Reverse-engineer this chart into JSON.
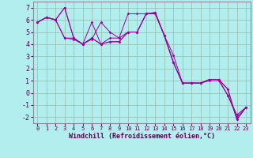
{
  "xlabel": "Windchill (Refroidissement éolien,°C)",
  "bg_color": "#b2eeee",
  "grid_color": "#aabbaa",
  "line_color": "#990099",
  "xlim": [
    -0.5,
    23.5
  ],
  "ylim": [
    -2.5,
    7.5
  ],
  "xticks": [
    0,
    1,
    2,
    3,
    4,
    5,
    6,
    7,
    8,
    9,
    10,
    11,
    12,
    13,
    14,
    15,
    16,
    17,
    18,
    19,
    20,
    21,
    22,
    23
  ],
  "yticks": [
    -2,
    -1,
    0,
    1,
    2,
    3,
    4,
    5,
    6,
    7
  ],
  "series": [
    [
      5.8,
      6.2,
      6.0,
      7.0,
      4.5,
      4.0,
      4.4,
      5.8,
      5.0,
      4.5,
      6.5,
      6.5,
      6.5,
      6.6,
      4.7,
      2.5,
      0.8,
      0.8,
      0.8,
      1.1,
      1.1,
      0.3,
      -2.2,
      -1.2
    ],
    [
      5.8,
      6.2,
      6.0,
      7.0,
      4.5,
      4.0,
      5.8,
      4.0,
      4.5,
      4.5,
      5.0,
      5.0,
      6.5,
      6.6,
      4.7,
      3.1,
      0.8,
      0.8,
      0.8,
      1.0,
      1.0,
      -0.2,
      -1.8,
      -1.2
    ],
    [
      5.8,
      6.2,
      6.0,
      4.5,
      4.5,
      4.0,
      4.5,
      4.0,
      4.2,
      4.2,
      5.0,
      5.0,
      6.5,
      6.5,
      4.7,
      2.5,
      0.8,
      0.8,
      0.8,
      1.1,
      1.1,
      0.3,
      -2.2,
      -1.2
    ],
    [
      5.8,
      6.2,
      6.0,
      4.5,
      4.4,
      4.0,
      4.5,
      4.0,
      4.2,
      4.2,
      5.0,
      5.0,
      6.5,
      6.5,
      4.7,
      2.5,
      0.8,
      0.8,
      0.8,
      1.1,
      1.1,
      -0.2,
      -2.0,
      -1.2
    ]
  ]
}
